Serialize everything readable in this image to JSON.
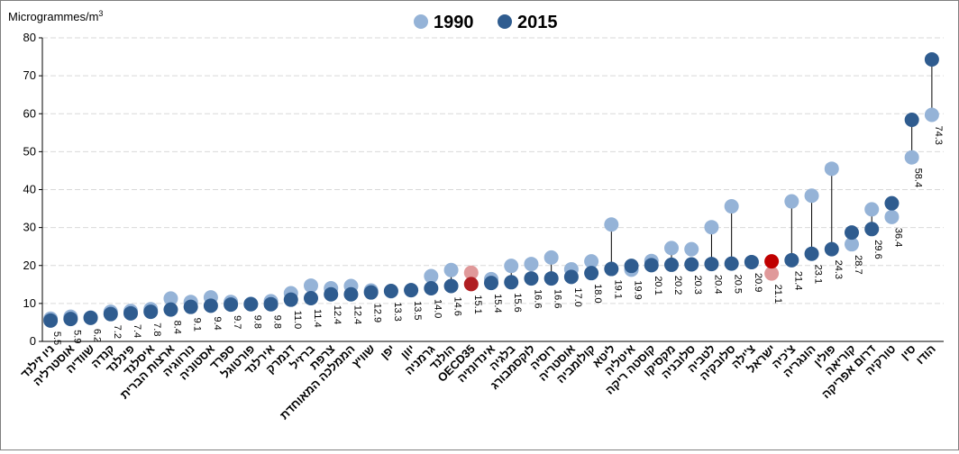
{
  "chart_data": {
    "type": "scatter",
    "ylabel": "Microgrammes/m",
    "ylabel_superscript": "3",
    "ylim": [
      0,
      80
    ],
    "yticks": [
      0,
      10,
      20,
      30,
      40,
      50,
      60,
      70,
      80
    ],
    "grid": true,
    "legend_position": "top-center",
    "categories": [
      "ניו זילנד",
      "אוסטרליה",
      "שוודיה",
      "קנדה",
      "פינלנד",
      "איסלנד",
      "ארצות הברית",
      "נורווגיה",
      "אסטוניה",
      "ספרד",
      "פורטוגל",
      "אירלנד",
      "דנמרק",
      "ברזיל",
      "צרפת",
      "הממלכה המאוחדת",
      "שוויץ",
      "יפן",
      "יוון",
      "גרמניה",
      "הולנד",
      "OECD35",
      "אינדונזיה",
      "בלגיה",
      "לוקסמבורג",
      "רוסיה",
      "אוסטריה",
      "קולומביה",
      "ליטא",
      "איטליה",
      "קוסטה ריקה",
      "מקסיקו",
      "סלובניה",
      "לטביה",
      "סלובקיה",
      "צ'ילה",
      "ישראל",
      "צ'כיה",
      "הונגריה",
      "פולין",
      "קוריאה",
      "דרום אפריקה",
      "טורקיה",
      "סין",
      "הודו"
    ],
    "series": [
      {
        "name": "1990",
        "color": "#95b3d7",
        "values": [
          6.0,
          6.5,
          6.3,
          7.8,
          8.0,
          8.5,
          11.3,
          10.4,
          11.6,
          10.4,
          9.9,
          10.6,
          12.7,
          14.7,
          14.0,
          14.6,
          13.4,
          13.2,
          13.5,
          17.2,
          18.8,
          18.1,
          16.4,
          19.9,
          20.4,
          22.1,
          19.0,
          21.1,
          30.8,
          18.9,
          21.2,
          24.6,
          24.3,
          30.1,
          35.6,
          20.9,
          17.9,
          36.9,
          38.4,
          45.5,
          25.6,
          34.8,
          32.8,
          48.5,
          59.7
        ]
      },
      {
        "name": "2015",
        "color": "#2f5c8f",
        "values": [
          5.5,
          5.9,
          6.2,
          7.2,
          7.4,
          7.8,
          8.4,
          9.1,
          9.4,
          9.7,
          9.8,
          9.8,
          11.0,
          11.4,
          12.4,
          12.4,
          12.9,
          13.3,
          13.5,
          14.0,
          14.6,
          15.1,
          15.4,
          15.6,
          16.6,
          16.6,
          17.0,
          18.0,
          19.1,
          19.9,
          20.1,
          20.2,
          20.3,
          20.4,
          20.5,
          20.9,
          21.1,
          21.4,
          23.1,
          24.3,
          28.7,
          29.6,
          36.4,
          58.4,
          74.3
        ]
      }
    ],
    "data_labels": [
      "5.5",
      "5.9",
      "6.2",
      "7.2",
      "7.4",
      "7.8",
      "8.4",
      "9.1",
      "9.4",
      "9.7",
      "9.8",
      "9.8",
      "11.0",
      "11.4",
      "12.4",
      "12.4",
      "12.9",
      "13.3",
      "13.5",
      "14.0",
      "14.6",
      "15.1",
      "15.4",
      "15.6",
      "16.6",
      "16.6",
      "17.0",
      "18.0",
      "19.1",
      "19.9",
      "20.1",
      "20.2",
      "20.3",
      "20.4",
      "20.5",
      "20.9",
      "21.1",
      "21.4",
      "23.1",
      "24.3",
      "28.7",
      "29.6",
      "36.4",
      "58.4",
      "74.3"
    ],
    "highlights": {
      "OECD35": {
        "color_1990": "#e0999a",
        "color_2015": "#b01e22"
      },
      "ישראל": {
        "color_1990": "#e0999a",
        "color_2015": "#c00000"
      }
    },
    "connector_color": "#000000"
  }
}
